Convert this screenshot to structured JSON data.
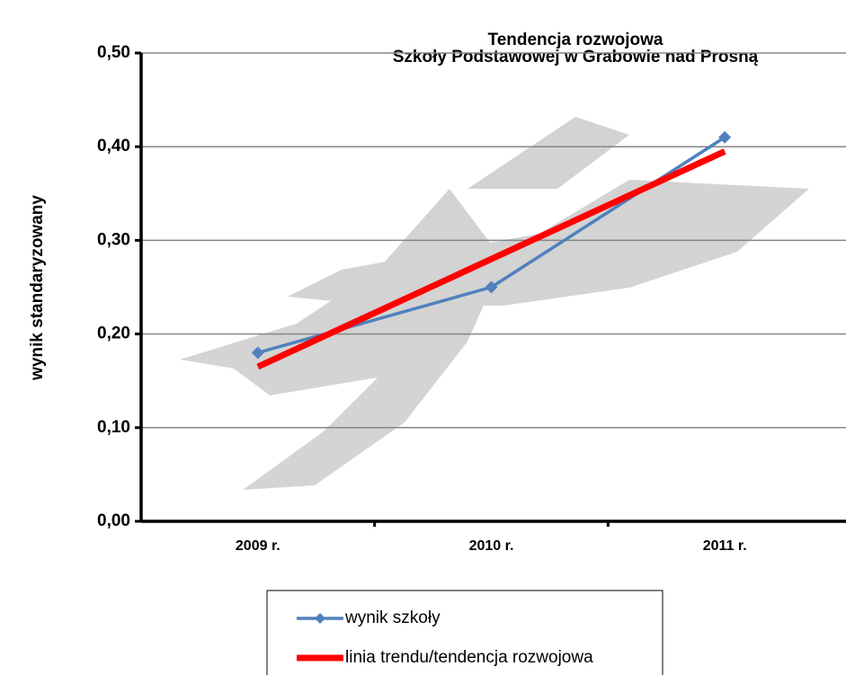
{
  "chart_data": {
    "type": "line",
    "title": "Tendencja rozwojowa",
    "subtitle": "Szkoły Podstawowej w Grabowie nad Prosną",
    "y_label": "wynik standaryzowany",
    "categories": [
      "2009 r.",
      "2010 r.",
      "2011 r."
    ],
    "series": [
      {
        "name": "wynik szkoły",
        "color": "#4f81bd",
        "values": [
          0.18,
          0.25,
          0.41
        ],
        "marker": "diamond"
      },
      {
        "name": "linia trendu/tendencja rozwojowa",
        "color": "#ff0000",
        "values": [
          0.165,
          0.28,
          0.395
        ]
      }
    ],
    "ylim": [
      0,
      0.5
    ],
    "yticks": [
      {
        "value": 0,
        "label": "0,00"
      },
      {
        "value": 0.1,
        "label": "0,10"
      },
      {
        "value": 0.2,
        "label": "0,20"
      },
      {
        "value": 0.3,
        "label": "0,30"
      },
      {
        "value": 0.4,
        "label": "0,40"
      },
      {
        "value": 0.5,
        "label": "0,50"
      }
    ],
    "grid": true,
    "legend": "bottom"
  }
}
